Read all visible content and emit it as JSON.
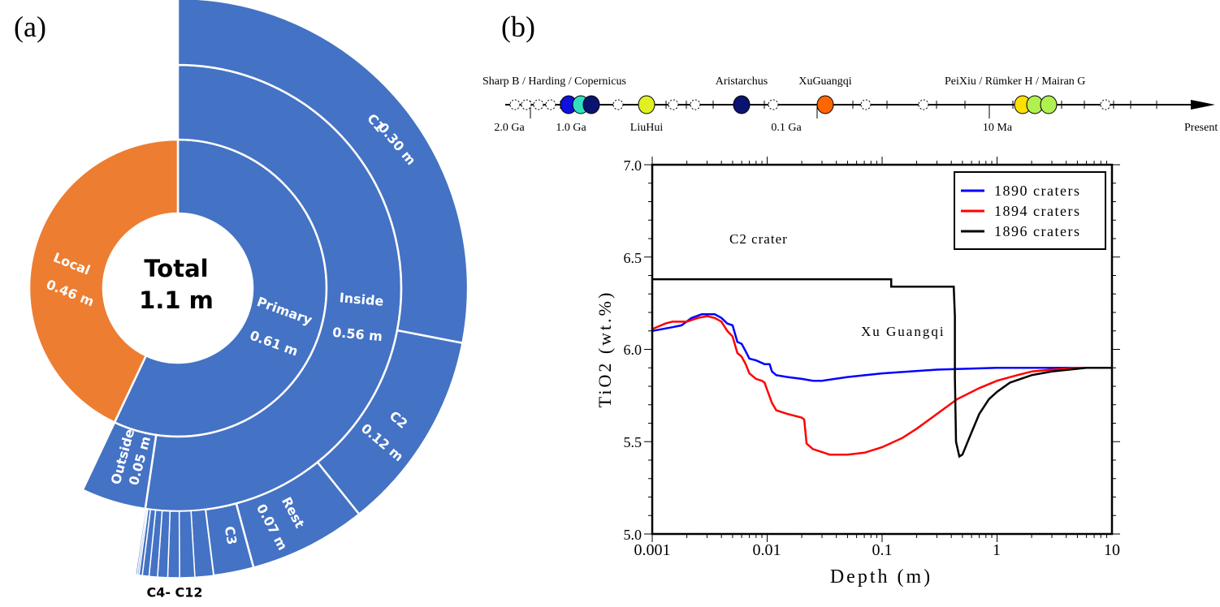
{
  "panels": {
    "a": "(a)",
    "b": "(b)"
  },
  "chart_data": [
    {
      "type": "sunburst",
      "center": {
        "title": "Total",
        "value": "1.1 m"
      },
      "rings": [
        [
          {
            "label": "Primary",
            "value_label": "0.61 m",
            "value": 0.61,
            "color": "#4472C4"
          },
          {
            "label": "Local",
            "value_label": "0.46 m",
            "value": 0.46,
            "color": "#ED7D31"
          }
        ],
        [
          {
            "label": "Inside",
            "value_label": "0.56 m",
            "value": 0.56,
            "color": "#4472C4"
          },
          {
            "label": "Outside",
            "value_label": "0.05 m",
            "value": 0.05,
            "color": "#4472C4"
          }
        ],
        [
          {
            "label": "C1",
            "value_label": "0.30 m",
            "value": 0.3,
            "color": "#4472C4"
          },
          {
            "label": "C2",
            "value_label": "0.12 m",
            "value": 0.12,
            "color": "#4472C4"
          },
          {
            "label": "Rest",
            "value_label": "0.07 m",
            "value": 0.07,
            "color": "#4472C4"
          },
          {
            "label": "C3",
            "value": 0.024,
            "color": "#4472C4"
          },
          {
            "value": 0.011,
            "color": "#4472C4"
          },
          {
            "value": 0.009,
            "color": "#4472C4"
          },
          {
            "value": 0.007,
            "color": "#4472C4"
          },
          {
            "value": 0.006,
            "color": "#4472C4"
          },
          {
            "value": 0.005,
            "color": "#4472C4"
          },
          {
            "value": 0.004,
            "color": "#4472C4"
          },
          {
            "value": 0.002,
            "color": "#4472C4"
          },
          {
            "value": 0.001,
            "color": "#4472C4"
          },
          {
            "value": 0.001,
            "color": "#4472C4"
          }
        ]
      ],
      "group_label": "C4- C12"
    },
    {
      "type": "timeline",
      "tick_labels": [
        "2.0 Ga",
        "1.0 Ga",
        "0.1 Ga",
        "10 Ma",
        "Present"
      ],
      "top_labels": [
        "Sharp B / Harding / Copernicus",
        "Aristarchus",
        "XuGuangqi",
        "PeiXiu / Rümker H / Mairan G"
      ],
      "bottom_labels": [
        "LiuHui"
      ],
      "filled_markers": [
        {
          "name": "Sharp B",
          "color": "#1010E0"
        },
        {
          "name": "Harding",
          "color": "#30E0C0"
        },
        {
          "name": "Copernicus",
          "color": "#0A1470"
        },
        {
          "name": "LiuHui",
          "color": "#E0F020"
        },
        {
          "name": "Aristarchus",
          "color": "#0A1470"
        },
        {
          "name": "XuGuangqi",
          "color": "#FF6600"
        },
        {
          "name": "PeiXiu",
          "color": "#FFE000"
        },
        {
          "name": "Rümker H",
          "color": "#B0F050"
        },
        {
          "name": "Mairan G",
          "color": "#B0F050"
        }
      ]
    },
    {
      "type": "line",
      "xlabel": "Depth (m)",
      "ylabel": "TiO2 (wt.%)",
      "xscale": "log",
      "xlim": [
        0.001,
        10
      ],
      "ylim": [
        5.0,
        7.0
      ],
      "xticks": [
        "0.001",
        "0.01",
        "0.1",
        "1",
        "10"
      ],
      "yticks": [
        "5.0",
        "5.5",
        "6.0",
        "6.5",
        "7.0"
      ],
      "legend": "top-right",
      "annotations": [
        "C2 crater",
        "Xu Guangqi"
      ],
      "series": [
        {
          "name": "1890 craters",
          "color": "#0000FF",
          "points": [
            [
              0.001,
              6.1
            ],
            [
              0.0015,
              6.12
            ],
            [
              0.0018,
              6.13
            ],
            [
              0.0022,
              6.17
            ],
            [
              0.0027,
              6.19
            ],
            [
              0.0035,
              6.19
            ],
            [
              0.004,
              6.17
            ],
            [
              0.0045,
              6.14
            ],
            [
              0.005,
              6.13
            ],
            [
              0.0055,
              6.04
            ],
            [
              0.006,
              6.03
            ],
            [
              0.0065,
              5.99
            ],
            [
              0.007,
              5.95
            ],
            [
              0.008,
              5.94
            ],
            [
              0.0095,
              5.92
            ],
            [
              0.0105,
              5.92
            ],
            [
              0.011,
              5.88
            ],
            [
              0.012,
              5.86
            ],
            [
              0.015,
              5.85
            ],
            [
              0.02,
              5.84
            ],
            [
              0.025,
              5.83
            ],
            [
              0.03,
              5.83
            ],
            [
              0.05,
              5.85
            ],
            [
              0.1,
              5.87
            ],
            [
              0.3,
              5.89
            ],
            [
              1,
              5.9
            ],
            [
              10,
              5.9
            ]
          ]
        },
        {
          "name": "1894 craters",
          "color": "#FF0000",
          "points": [
            [
              0.001,
              6.11
            ],
            [
              0.0013,
              6.14
            ],
            [
              0.0015,
              6.15
            ],
            [
              0.002,
              6.15
            ],
            [
              0.0025,
              6.17
            ],
            [
              0.003,
              6.18
            ],
            [
              0.0035,
              6.17
            ],
            [
              0.004,
              6.15
            ],
            [
              0.0045,
              6.1
            ],
            [
              0.005,
              6.07
            ],
            [
              0.0055,
              5.98
            ],
            [
              0.006,
              5.96
            ],
            [
              0.0065,
              5.92
            ],
            [
              0.007,
              5.87
            ],
            [
              0.008,
              5.84
            ],
            [
              0.009,
              5.83
            ],
            [
              0.0095,
              5.82
            ],
            [
              0.01,
              5.78
            ],
            [
              0.011,
              5.71
            ],
            [
              0.012,
              5.67
            ],
            [
              0.015,
              5.65
            ],
            [
              0.02,
              5.63
            ],
            [
              0.021,
              5.62
            ],
            [
              0.022,
              5.49
            ],
            [
              0.025,
              5.46
            ],
            [
              0.035,
              5.43
            ],
            [
              0.05,
              5.43
            ],
            [
              0.07,
              5.44
            ],
            [
              0.1,
              5.47
            ],
            [
              0.15,
              5.52
            ],
            [
              0.2,
              5.57
            ],
            [
              0.3,
              5.65
            ],
            [
              0.45,
              5.73
            ],
            [
              0.7,
              5.79
            ],
            [
              1,
              5.83
            ],
            [
              1.5,
              5.86
            ],
            [
              2,
              5.88
            ],
            [
              3,
              5.89
            ],
            [
              5,
              5.9
            ],
            [
              10,
              5.9
            ]
          ]
        },
        {
          "name": "1896 craters",
          "color": "#000000",
          "points": [
            [
              0.001,
              6.38
            ],
            [
              0.12,
              6.38
            ],
            [
              0.12,
              6.34
            ],
            [
              0.42,
              6.34
            ],
            [
              0.43,
              6.18
            ],
            [
              0.43,
              5.85
            ],
            [
              0.44,
              5.5
            ],
            [
              0.47,
              5.42
            ],
            [
              0.5,
              5.43
            ],
            [
              0.6,
              5.55
            ],
            [
              0.7,
              5.65
            ],
            [
              0.85,
              5.73
            ],
            [
              1,
              5.77
            ],
            [
              1.3,
              5.82
            ],
            [
              2,
              5.86
            ],
            [
              3,
              5.88
            ],
            [
              6,
              5.9
            ],
            [
              10,
              5.9
            ]
          ]
        }
      ]
    }
  ]
}
